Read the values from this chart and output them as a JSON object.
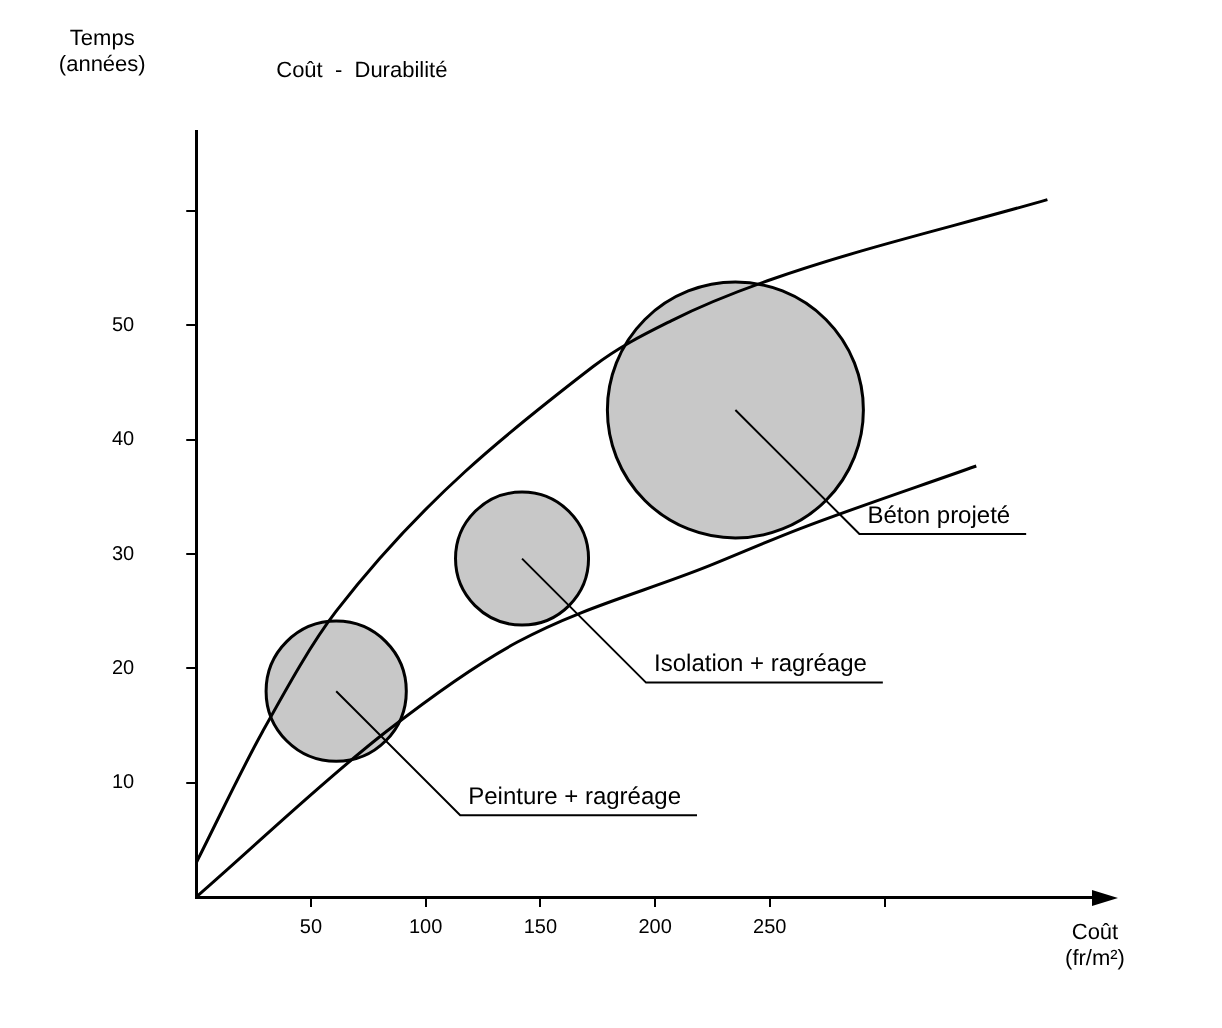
{
  "chart_data": {
    "type": "bubble",
    "title": "Coût  -  Durabilité",
    "xlabel": "Coût\n(fr/m²)",
    "ylabel": "Temps\n(années)",
    "xlim": [
      0,
      390
    ],
    "xticks": [
      50,
      100,
      150,
      200,
      250,
      {
        "value": 300,
        "label": null
      }
    ],
    "ylim": [
      0,
      67
    ],
    "yticks": [
      10,
      20,
      30,
      40,
      50,
      {
        "value": 60,
        "label": null
      }
    ],
    "grid": false,
    "line_style": "solid",
    "series": [
      {
        "type": "line",
        "color": "#000000",
        "x": [
          0,
          29,
          61,
          173,
          207,
          249,
          371
        ],
        "values": [
          3,
          14.5,
          25,
          46.4,
          50.4,
          53.9,
          61
        ]
      },
      {
        "type": "line",
        "color": "#000000",
        "x": [
          0,
          83,
          140,
          224,
          263,
          340
        ],
        "values": [
          0,
          14.5,
          22.3,
          29,
          32.2,
          37.7
        ]
      },
      {
        "type": "bubble",
        "color": "#c8c8c8",
        "x": [
          61,
          142,
          235
        ],
        "values": [
          18,
          29.6,
          42.6
        ],
        "sizes": [
          0.3,
          0.27,
          1
        ]
      }
    ],
    "annotations": [
      {
        "text": "Peinture + ragréage",
        "x": 61,
        "y": 18
      },
      {
        "text": "Isolation + ragréage",
        "x": 142,
        "y": 29.6
      },
      {
        "text": "Béton projeté",
        "x": 235,
        "y": 42.6
      }
    ]
  }
}
